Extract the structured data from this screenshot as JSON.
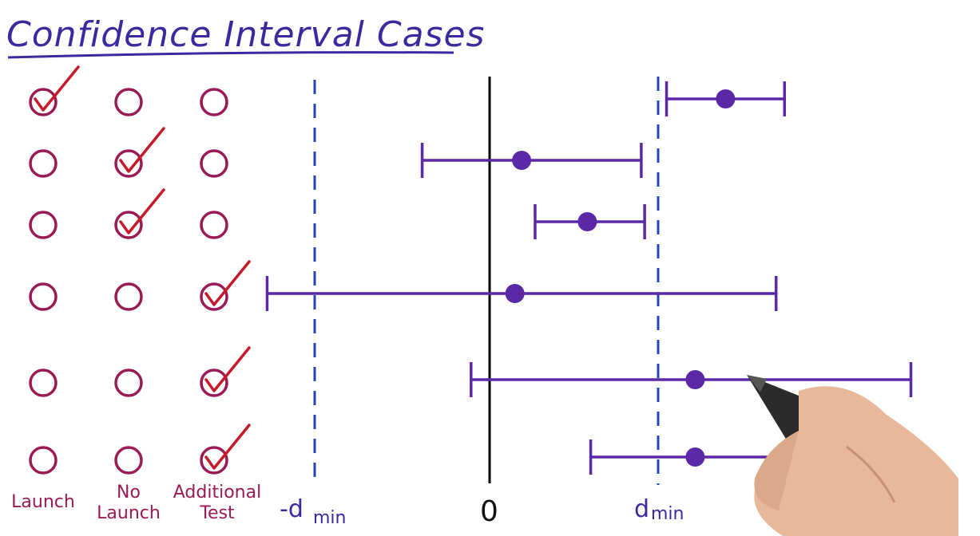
{
  "title": "Confidence Interval Cases",
  "columns": [
    {
      "key": "launch",
      "lines": [
        "Launch"
      ]
    },
    {
      "key": "no_launch",
      "lines": [
        "No",
        "Launch"
      ]
    },
    {
      "key": "additional_test",
      "lines": [
        "Additional",
        "Test"
      ]
    }
  ],
  "axis_labels": {
    "neg_dmin": "-d",
    "neg_dmin_sub": "min",
    "zero": "0",
    "dmin": "d",
    "dmin_sub": "min"
  },
  "cases": [
    {
      "choice": "launch",
      "low": 1.05,
      "point": 1.4,
      "high": 1.75
    },
    {
      "choice": "no_launch",
      "low": -0.4,
      "point": 0.19,
      "high": 0.9
    },
    {
      "choice": "no_launch",
      "low": 0.27,
      "point": 0.58,
      "high": 0.92
    },
    {
      "choice": "additional_test",
      "low": -1.32,
      "point": 0.15,
      "high": 1.7
    },
    {
      "choice": "additional_test",
      "low": -0.11,
      "point": 1.22,
      "high": 2.5
    },
    {
      "choice": "additional_test",
      "low": 0.6,
      "point": 1.22,
      "high": 1.85
    }
  ],
  "colors": {
    "title": "#3a2aa0",
    "circle": "#9a1a55",
    "check": "#c41a2a",
    "interval": "#5b28a8",
    "dashed": "#2a44b8",
    "axis": "#000000",
    "label": "#9a1a55"
  }
}
